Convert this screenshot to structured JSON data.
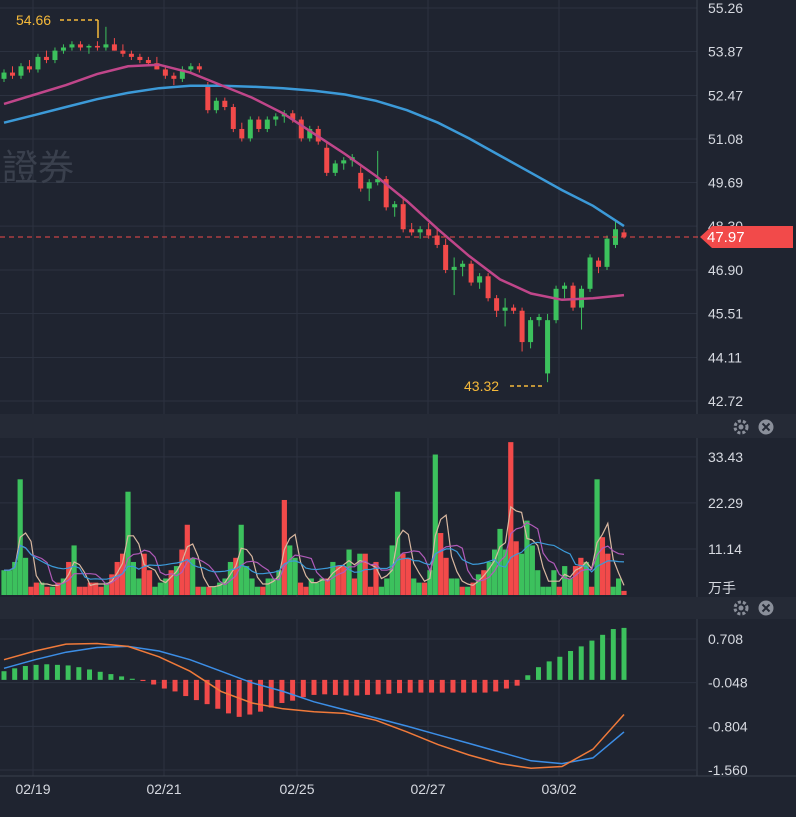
{
  "watermark": "證券",
  "colors": {
    "background": "#1f2430",
    "grid": "#2c3240",
    "up": "#3cc15d",
    "down": "#f24a4a",
    "ma_blue": "#3c9ad8",
    "ma_purple": "#c0468a",
    "extreme_label": "#f5b93a",
    "vol_ma1": "#d9b8a0",
    "vol_ma2": "#3c9ad8",
    "vol_ma3": "#b05ab8",
    "dif": "#f07a3a",
    "dea": "#3c8ee6"
  },
  "price_panel": {
    "y_ticks": [
      "55.26",
      "53.87",
      "52.47",
      "51.08",
      "49.69",
      "48.30",
      "46.90",
      "45.51",
      "44.11",
      "42.72"
    ],
    "last_price": "47.97",
    "high_label": "54.66",
    "low_label": "43.32"
  },
  "volume_panel": {
    "y_ticks": [
      "33.43",
      "22.29",
      "11.14"
    ],
    "unit": "万手"
  },
  "macd_panel": {
    "y_ticks": [
      "0.708",
      "-0.048",
      "-0.804",
      "-1.560"
    ]
  },
  "x_labels": [
    "02/19",
    "02/21",
    "02/25",
    "02/27",
    "03/02"
  ],
  "controls": {
    "settings_icon": "gear-icon",
    "close_icon": "close-icon"
  },
  "chart_data": [
    {
      "type": "candlestick",
      "title": "",
      "x_labels": [
        "02/19",
        "02/21",
        "02/25",
        "02/27",
        "03/02"
      ],
      "ylim": [
        42.72,
        55.26
      ],
      "candles": [
        [
          53.0,
          53.3,
          52.9,
          53.2
        ],
        [
          53.2,
          53.4,
          53.0,
          53.1
        ],
        [
          53.1,
          53.5,
          53.0,
          53.4
        ],
        [
          53.4,
          53.6,
          53.2,
          53.3
        ],
        [
          53.3,
          53.8,
          53.2,
          53.7
        ],
        [
          53.7,
          53.9,
          53.5,
          53.6
        ],
        [
          53.6,
          54.0,
          53.5,
          53.9
        ],
        [
          53.9,
          54.1,
          53.8,
          54.0
        ],
        [
          54.0,
          54.2,
          53.9,
          54.1
        ],
        [
          54.1,
          54.2,
          53.9,
          54.0
        ],
        [
          54.0,
          54.1,
          53.8,
          54.05
        ],
        [
          54.05,
          54.2,
          53.9,
          54.0
        ],
        [
          54.0,
          54.66,
          53.9,
          54.1
        ],
        [
          54.1,
          54.3,
          53.9,
          53.9
        ],
        [
          53.9,
          54.1,
          53.7,
          53.8
        ],
        [
          53.8,
          53.9,
          53.6,
          53.7
        ],
        [
          53.7,
          53.8,
          53.5,
          53.6
        ],
        [
          53.6,
          53.7,
          53.4,
          53.5
        ],
        [
          53.5,
          53.7,
          53.3,
          53.3
        ],
        [
          53.3,
          53.4,
          53.0,
          53.1
        ],
        [
          53.1,
          53.2,
          52.8,
          53.0
        ],
        [
          53.0,
          53.4,
          52.9,
          53.3
        ],
        [
          53.3,
          53.5,
          53.2,
          53.4
        ],
        [
          53.4,
          53.5,
          53.2,
          53.3
        ],
        [
          52.8,
          52.9,
          51.9,
          52.0
        ],
        [
          52.0,
          52.4,
          51.9,
          52.3
        ],
        [
          52.3,
          52.4,
          52.0,
          52.1
        ],
        [
          52.1,
          52.2,
          51.3,
          51.4
        ],
        [
          51.4,
          51.6,
          51.0,
          51.1
        ],
        [
          51.1,
          51.8,
          51.0,
          51.7
        ],
        [
          51.7,
          51.8,
          51.3,
          51.4
        ],
        [
          51.4,
          51.8,
          51.3,
          51.7
        ],
        [
          51.7,
          51.9,
          51.5,
          51.8
        ],
        [
          51.8,
          52.0,
          51.6,
          51.9
        ],
        [
          51.9,
          52.0,
          51.6,
          51.7
        ],
        [
          51.7,
          51.8,
          51.0,
          51.1
        ],
        [
          51.1,
          51.5,
          51.0,
          51.4
        ],
        [
          51.4,
          51.5,
          50.9,
          51.0
        ],
        [
          50.8,
          51.0,
          49.9,
          50.0
        ],
        [
          50.0,
          50.4,
          49.9,
          50.3
        ],
        [
          50.3,
          50.5,
          50.1,
          50.4
        ],
        [
          50.4,
          50.6,
          50.2,
          50.5
        ],
        [
          50.0,
          50.2,
          49.4,
          49.5
        ],
        [
          49.5,
          49.8,
          49.1,
          49.7
        ],
        [
          49.7,
          50.7,
          49.6,
          49.8
        ],
        [
          49.8,
          49.9,
          48.8,
          48.9
        ],
        [
          48.9,
          49.1,
          48.6,
          49.0
        ],
        [
          49.0,
          49.2,
          48.1,
          48.2
        ],
        [
          48.2,
          48.4,
          48.0,
          48.1
        ],
        [
          48.1,
          48.3,
          47.9,
          48.2
        ],
        [
          48.2,
          48.4,
          47.9,
          48.0
        ],
        [
          48.0,
          48.2,
          47.6,
          47.7
        ],
        [
          47.7,
          47.9,
          46.8,
          46.9
        ],
        [
          46.9,
          47.3,
          46.1,
          47.0
        ],
        [
          47.0,
          47.2,
          46.7,
          47.1
        ],
        [
          47.1,
          47.2,
          46.4,
          46.5
        ],
        [
          46.5,
          46.8,
          46.3,
          46.7
        ],
        [
          46.7,
          46.8,
          45.9,
          46.0
        ],
        [
          46.0,
          46.1,
          45.4,
          45.6
        ],
        [
          45.6,
          46.0,
          45.1,
          45.7
        ],
        [
          45.7,
          45.8,
          45.5,
          45.6
        ],
        [
          45.6,
          45.7,
          44.3,
          44.6
        ],
        [
          44.6,
          45.4,
          44.4,
          45.3
        ],
        [
          45.3,
          45.5,
          45.1,
          45.4
        ],
        [
          43.6,
          45.5,
          43.32,
          45.3
        ],
        [
          45.3,
          46.4,
          45.2,
          46.3
        ],
        [
          46.3,
          46.5,
          46.0,
          46.4
        ],
        [
          46.4,
          46.5,
          45.6,
          45.7
        ],
        [
          45.7,
          46.4,
          45.0,
          46.3
        ],
        [
          46.3,
          47.4,
          46.2,
          47.3
        ],
        [
          47.2,
          47.3,
          46.8,
          47.0
        ],
        [
          47.0,
          48.0,
          46.9,
          47.9
        ],
        [
          47.7,
          48.5,
          47.6,
          48.2
        ],
        [
          48.1,
          48.2,
          47.9,
          47.97
        ]
      ],
      "ma_blue": [
        [
          0,
          51.6
        ],
        [
          10,
          51.85
        ],
        [
          20,
          52.1
        ],
        [
          30,
          52.35
        ],
        [
          40,
          52.55
        ],
        [
          50,
          52.7
        ],
        [
          60,
          52.78
        ],
        [
          70,
          52.78
        ],
        [
          80,
          52.75
        ],
        [
          90,
          52.7
        ],
        [
          100,
          52.62
        ],
        [
          110,
          52.5
        ],
        [
          120,
          52.3
        ],
        [
          130,
          52.0
        ],
        [
          140,
          51.6
        ],
        [
          150,
          51.1
        ],
        [
          160,
          50.55
        ],
        [
          170,
          50.0
        ],
        [
          180,
          49.45
        ],
        [
          190,
          48.95
        ],
        [
          200,
          48.3
        ]
      ],
      "ma_purple": [
        [
          0,
          52.2
        ],
        [
          10,
          52.5
        ],
        [
          20,
          52.8
        ],
        [
          30,
          53.15
        ],
        [
          40,
          53.4
        ],
        [
          50,
          53.45
        ],
        [
          60,
          53.2
        ],
        [
          70,
          52.8
        ],
        [
          80,
          52.4
        ],
        [
          90,
          51.9
        ],
        [
          100,
          51.25
        ],
        [
          110,
          50.6
        ],
        [
          120,
          49.9
        ],
        [
          130,
          49.1
        ],
        [
          140,
          48.2
        ],
        [
          150,
          47.35
        ],
        [
          160,
          46.6
        ],
        [
          170,
          46.15
        ],
        [
          180,
          45.95
        ],
        [
          190,
          46.0
        ],
        [
          200,
          46.1
        ]
      ]
    },
    {
      "type": "bar",
      "title": "",
      "ylabel": "万手",
      "ylim": [
        0,
        38
      ],
      "volumes": [
        [
          6,
          1
        ],
        [
          6,
          1
        ],
        [
          8,
          1
        ],
        [
          28,
          1
        ],
        [
          9,
          1
        ],
        [
          2,
          0
        ],
        [
          3,
          0
        ],
        [
          3,
          1
        ],
        [
          2,
          0
        ],
        [
          2,
          1
        ],
        [
          3,
          0
        ],
        [
          4,
          1
        ],
        [
          8,
          0
        ],
        [
          12,
          1
        ],
        [
          2,
          0
        ],
        [
          2,
          0
        ],
        [
          3,
          0
        ],
        [
          3,
          0
        ],
        [
          2,
          0
        ],
        [
          3,
          1
        ],
        [
          5,
          0
        ],
        [
          8,
          0
        ],
        [
          10,
          0
        ],
        [
          25,
          1
        ],
        [
          8,
          1
        ],
        [
          4,
          1
        ],
        [
          10,
          0
        ],
        [
          6,
          0
        ],
        [
          2,
          1
        ],
        [
          3,
          1
        ],
        [
          4,
          1
        ],
        [
          6,
          0
        ],
        [
          7,
          1
        ],
        [
          11,
          0
        ],
        [
          17,
          0
        ],
        [
          9,
          1
        ],
        [
          2,
          0
        ],
        [
          2,
          1
        ],
        [
          2,
          0
        ],
        [
          2,
          1
        ],
        [
          3,
          1
        ],
        [
          4,
          1
        ],
        [
          8,
          1
        ],
        [
          9,
          0
        ],
        [
          17,
          1
        ],
        [
          7,
          1
        ],
        [
          4,
          1
        ],
        [
          2,
          1
        ],
        [
          2,
          0
        ],
        [
          4,
          1
        ],
        [
          4,
          1
        ],
        [
          6,
          1
        ],
        [
          23,
          0
        ],
        [
          12,
          1
        ],
        [
          9,
          1
        ],
        [
          3,
          0
        ],
        [
          2,
          0
        ],
        [
          4,
          1
        ],
        [
          3,
          1
        ],
        [
          4,
          1
        ],
        [
          4,
          0
        ],
        [
          8,
          1
        ],
        [
          7,
          0
        ],
        [
          7,
          0
        ],
        [
          11,
          1
        ],
        [
          4,
          0
        ],
        [
          10,
          1
        ],
        [
          10,
          0
        ],
        [
          2,
          0
        ],
        [
          8,
          0
        ],
        [
          2,
          1
        ],
        [
          4,
          1
        ],
        [
          12,
          1
        ],
        [
          25,
          1
        ],
        [
          10,
          0
        ],
        [
          9,
          0
        ],
        [
          4,
          1
        ],
        [
          3,
          1
        ],
        [
          3,
          0
        ],
        [
          6,
          1
        ],
        [
          34,
          1
        ],
        [
          15,
          0
        ],
        [
          9,
          0
        ],
        [
          4,
          1
        ],
        [
          4,
          1
        ],
        [
          2,
          0
        ],
        [
          2,
          1
        ],
        [
          3,
          0
        ],
        [
          5,
          1
        ],
        [
          6,
          0
        ],
        [
          8,
          1
        ],
        [
          11,
          1
        ],
        [
          16,
          1
        ],
        [
          11,
          1
        ],
        [
          37,
          0
        ],
        [
          13,
          0
        ],
        [
          10,
          1
        ],
        [
          18,
          1
        ],
        [
          12,
          1
        ],
        [
          6,
          1
        ],
        [
          2,
          1
        ],
        [
          2,
          1
        ],
        [
          6,
          1
        ],
        [
          2,
          0
        ],
        [
          7,
          1
        ],
        [
          4,
          1
        ],
        [
          7,
          0
        ],
        [
          9,
          0
        ],
        [
          8,
          1
        ],
        [
          2,
          0
        ],
        [
          28,
          1
        ],
        [
          14,
          0
        ],
        [
          10,
          0
        ],
        [
          2,
          1
        ],
        [
          4,
          1
        ],
        [
          1,
          0
        ]
      ]
    },
    {
      "type": "bar",
      "title": "",
      "ylim": [
        -1.56,
        0.95
      ],
      "macd_hist": [
        0.15,
        0.2,
        0.24,
        0.26,
        0.27,
        0.26,
        0.25,
        0.22,
        0.18,
        0.14,
        0.1,
        0.06,
        0.02,
        -0.02,
        -0.08,
        -0.15,
        -0.2,
        -0.28,
        -0.35,
        -0.42,
        -0.5,
        -0.58,
        -0.64,
        -0.6,
        -0.55,
        -0.48,
        -0.4,
        -0.36,
        -0.3,
        -0.26,
        -0.25,
        -0.26,
        -0.27,
        -0.27,
        -0.26,
        -0.25,
        -0.24,
        -0.23,
        -0.22,
        -0.22,
        -0.22,
        -0.22,
        -0.22,
        -0.22,
        -0.22,
        -0.22,
        -0.2,
        -0.15,
        -0.1,
        0.08,
        0.22,
        0.32,
        0.4,
        0.5,
        0.58,
        0.68,
        0.78,
        0.88,
        0.9
      ],
      "dif": [
        [
          0,
          0.35
        ],
        [
          10,
          0.5
        ],
        [
          20,
          0.62
        ],
        [
          30,
          0.63
        ],
        [
          40,
          0.58
        ],
        [
          50,
          0.4
        ],
        [
          60,
          0.15
        ],
        [
          70,
          -0.2
        ],
        [
          80,
          -0.4
        ],
        [
          90,
          -0.5
        ],
        [
          100,
          -0.55
        ],
        [
          110,
          -0.58
        ],
        [
          120,
          -0.7
        ],
        [
          130,
          -0.9
        ],
        [
          140,
          -1.12
        ],
        [
          150,
          -1.3
        ],
        [
          160,
          -1.45
        ],
        [
          170,
          -1.53
        ],
        [
          180,
          -1.5
        ],
        [
          190,
          -1.2
        ],
        [
          200,
          -0.6
        ]
      ],
      "dea": [
        [
          0,
          0.2
        ],
        [
          10,
          0.35
        ],
        [
          20,
          0.48
        ],
        [
          30,
          0.56
        ],
        [
          40,
          0.58
        ],
        [
          50,
          0.5
        ],
        [
          60,
          0.35
        ],
        [
          70,
          0.15
        ],
        [
          80,
          -0.05
        ],
        [
          90,
          -0.2
        ],
        [
          100,
          -0.38
        ],
        [
          110,
          -0.52
        ],
        [
          120,
          -0.66
        ],
        [
          130,
          -0.8
        ],
        [
          140,
          -0.95
        ],
        [
          150,
          -1.1
        ],
        [
          160,
          -1.25
        ],
        [
          170,
          -1.4
        ],
        [
          180,
          -1.45
        ],
        [
          190,
          -1.35
        ],
        [
          200,
          -0.9
        ]
      ]
    }
  ]
}
